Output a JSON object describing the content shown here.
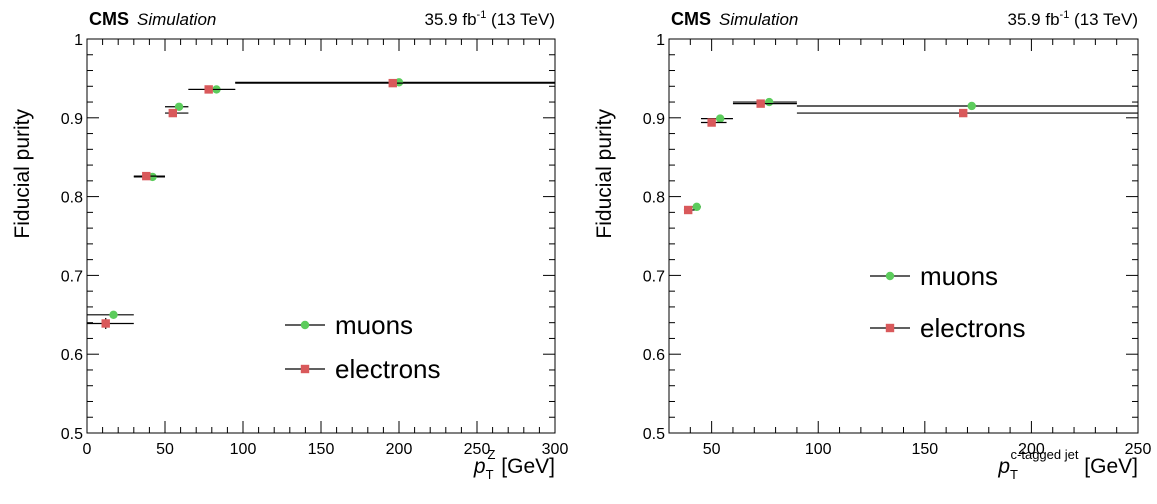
{
  "chart_data": [
    {
      "type": "scatter",
      "experiment": "CMS",
      "label": "Simulation",
      "lumi": "35.9 fb",
      "lumi_sup": "-1",
      "energy": " (13 TeV)",
      "xlabel_var": "p",
      "xlabel_sub": "T",
      "xlabel_sup": "Z",
      "xlabel_unit": " [GeV]",
      "ylabel": "Fiducial purity",
      "xlim": [
        0,
        300
      ],
      "ylim": [
        0.5,
        1.0
      ],
      "xticks": [
        0,
        50,
        100,
        150,
        200,
        250,
        300
      ],
      "xtick_labels": [
        "0",
        "50",
        "100",
        "150",
        "200",
        "250",
        "300"
      ],
      "yticks": [
        0.5,
        0.6,
        0.7,
        0.8,
        0.9,
        1.0
      ],
      "ytick_labels": [
        "0.5",
        "0.6",
        "0.7",
        "0.8",
        "0.9",
        "1"
      ],
      "legend_placement": "bottom-center",
      "series": [
        {
          "name": "muons",
          "color": "#5ccc5c",
          "marker": "circle",
          "points": [
            {
              "x": 17,
              "y": 0.65,
              "xlo": 0,
              "xhi": 30,
              "err": 0.004
            },
            {
              "x": 42,
              "y": 0.825,
              "xlo": 30,
              "xhi": 50,
              "err": 0.002
            },
            {
              "x": 59,
              "y": 0.914,
              "xlo": 50,
              "xhi": 65,
              "err": 0.002
            },
            {
              "x": 83,
              "y": 0.936,
              "xlo": 65,
              "xhi": 95,
              "err": 0.002
            },
            {
              "x": 200,
              "y": 0.945,
              "xlo": 95,
              "xhi": 300,
              "err": 0.002
            }
          ]
        },
        {
          "name": "electrons",
          "color": "#d9595b",
          "marker": "square",
          "points": [
            {
              "x": 12,
              "y": 0.639,
              "xlo": 0,
              "xhi": 30,
              "err": 0.007
            },
            {
              "x": 38,
              "y": 0.826,
              "xlo": 30,
              "xhi": 50,
              "err": 0.003
            },
            {
              "x": 55,
              "y": 0.906,
              "xlo": 50,
              "xhi": 65,
              "err": 0.003
            },
            {
              "x": 78,
              "y": 0.936,
              "xlo": 65,
              "xhi": 95,
              "err": 0.002
            },
            {
              "x": 196,
              "y": 0.944,
              "xlo": 95,
              "xhi": 300,
              "err": 0.002
            }
          ]
        }
      ]
    },
    {
      "type": "scatter",
      "experiment": "CMS",
      "label": "Simulation",
      "lumi": "35.9 fb",
      "lumi_sup": "-1",
      "energy": " (13 TeV)",
      "xlabel_var": "p",
      "xlabel_sub": "T",
      "xlabel_sup": "c-tagged jet",
      "xlabel_unit": " [GeV]",
      "ylabel": "Fiducial purity",
      "xlim": [
        30,
        250
      ],
      "ylim": [
        0.5,
        1.0
      ],
      "xticks": [
        50,
        100,
        150,
        200,
        250
      ],
      "xtick_labels": [
        "50",
        "100",
        "150",
        "200",
        "250"
      ],
      "yticks": [
        0.5,
        0.6,
        0.7,
        0.8,
        0.9,
        1.0
      ],
      "ytick_labels": [
        "0.5",
        "0.6",
        "0.7",
        "0.8",
        "0.9",
        "1"
      ],
      "legend_placement": "center",
      "series": [
        {
          "name": "muons",
          "color": "#5ccc5c",
          "marker": "circle",
          "points": [
            {
              "x": 43,
              "y": 0.787,
              "xlo": 40,
              "xhi": 45,
              "err": 0.003
            },
            {
              "x": 54,
              "y": 0.899,
              "xlo": 45,
              "xhi": 60,
              "err": 0.002
            },
            {
              "x": 77,
              "y": 0.92,
              "xlo": 60,
              "xhi": 90,
              "err": 0.002
            },
            {
              "x": 172,
              "y": 0.915,
              "xlo": 90,
              "xhi": 250,
              "err": 0.002
            }
          ]
        },
        {
          "name": "electrons",
          "color": "#d9595b",
          "marker": "square",
          "points": [
            {
              "x": 39,
              "y": 0.783,
              "xlo": 37,
              "xhi": 42,
              "err": 0.005
            },
            {
              "x": 50,
              "y": 0.894,
              "xlo": 45,
              "xhi": 57,
              "err": 0.003
            },
            {
              "x": 73,
              "y": 0.918,
              "xlo": 60,
              "xhi": 90,
              "err": 0.002
            },
            {
              "x": 168,
              "y": 0.906,
              "xlo": 90,
              "xhi": 250,
              "err": 0.002
            }
          ]
        }
      ]
    }
  ]
}
